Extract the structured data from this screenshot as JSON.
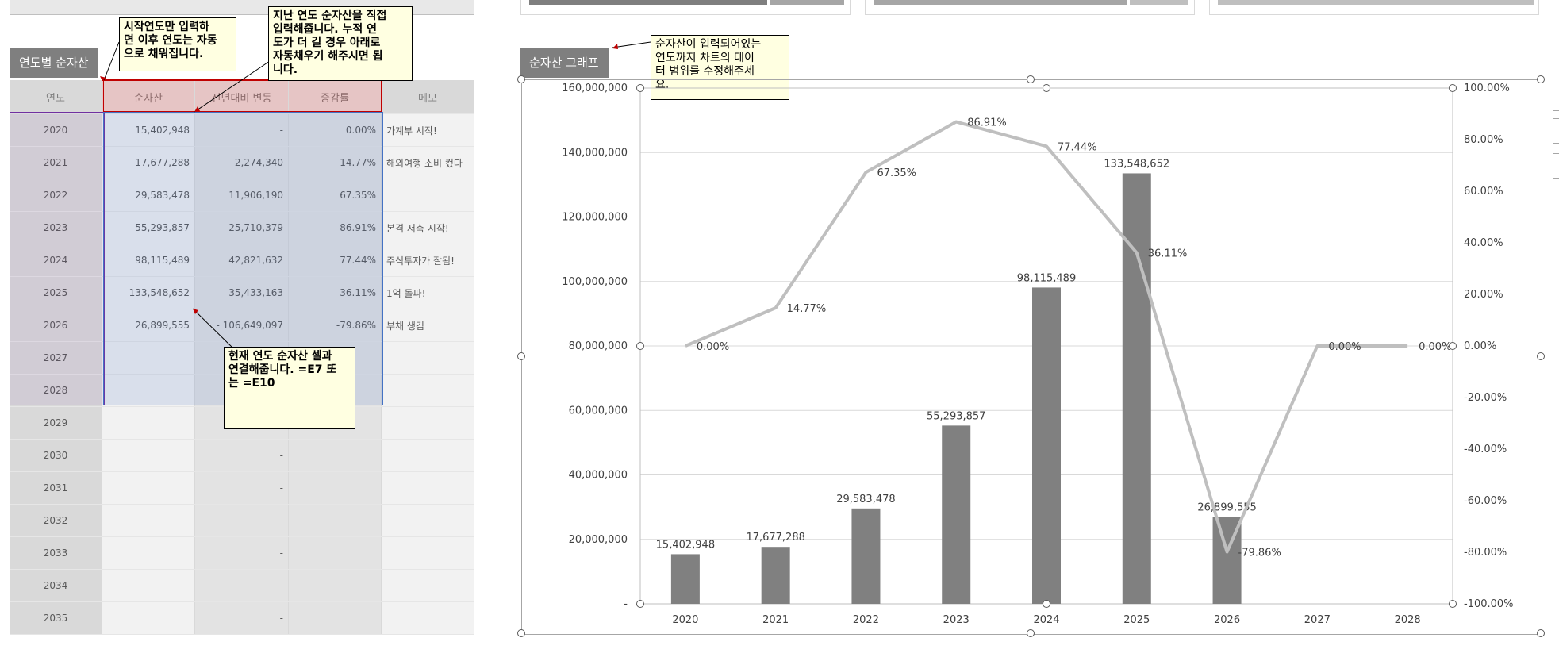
{
  "table": {
    "title": "연도별 순자산",
    "headers": {
      "year": "연도",
      "net_assets": "순자산",
      "change": "전년대비 변동",
      "rate": "증감률",
      "memo": "메모"
    },
    "rows": [
      {
        "year": "2020",
        "net": "15,402,948",
        "change": "-",
        "rate": "0.00%",
        "memo": "가계부 시작!"
      },
      {
        "year": "2021",
        "net": "17,677,288",
        "change": "2,274,340",
        "rate": "14.77%",
        "memo": "해외여행 소비 컸다"
      },
      {
        "year": "2022",
        "net": "29,583,478",
        "change": "11,906,190",
        "rate": "67.35%",
        "memo": ""
      },
      {
        "year": "2023",
        "net": "55,293,857",
        "change": "25,710,379",
        "rate": "86.91%",
        "memo": "본격 저축 시작!"
      },
      {
        "year": "2024",
        "net": "98,115,489",
        "change": "42,821,632",
        "rate": "77.44%",
        "memo": "주식투자가 잘됨!"
      },
      {
        "year": "2025",
        "net": "133,548,652",
        "change": "35,433,163",
        "rate": "36.11%",
        "memo": "1억 돌파!"
      },
      {
        "year": "2026",
        "net": "26,899,555",
        "change": "-  106,649,097",
        "rate": "-79.86%",
        "memo": "부채 생김"
      },
      {
        "year": "2027",
        "net": "",
        "change": "",
        "rate": "",
        "memo": ""
      },
      {
        "year": "2028",
        "net": "",
        "change": "",
        "rate": "",
        "memo": ""
      },
      {
        "year": "2029",
        "net": "",
        "change": "",
        "rate": "",
        "memo": ""
      },
      {
        "year": "2030",
        "net": "",
        "change": "-",
        "rate": "",
        "memo": ""
      },
      {
        "year": "2031",
        "net": "",
        "change": "-",
        "rate": "",
        "memo": ""
      },
      {
        "year": "2032",
        "net": "",
        "change": "-",
        "rate": "",
        "memo": ""
      },
      {
        "year": "2033",
        "net": "",
        "change": "-",
        "rate": "",
        "memo": ""
      },
      {
        "year": "2034",
        "net": "",
        "change": "-",
        "rate": "",
        "memo": ""
      },
      {
        "year": "2035",
        "net": "",
        "change": "-",
        "rate": "",
        "memo": ""
      }
    ]
  },
  "top_remnant": {
    "text": "...,000,000     100%"
  },
  "notes": {
    "start_year": "시작연도만 입력하\n면 이후 연도는 자동\n으로 채워집니다.",
    "past_years": "지난 연도 순자산을 직접\n입력해줍니다. 누적 연\n도가 더 길 경우 아래로\n자동채우기 해주시면 됩\n니다.",
    "current_year": "현재 연도 순자산 셀과\n연결해줍니다. =E7 또\n는 =E10",
    "chart_range": "순자산이 입력되어있는\n연도까지 차트의 데이\n터 범위를 수정해주세\n요."
  },
  "chart_tab": "순자산 그래프",
  "chart_data": {
    "type": "bar+line",
    "categories": [
      "2020",
      "2021",
      "2022",
      "2023",
      "2024",
      "2025",
      "2026",
      "2027",
      "2028"
    ],
    "bar_values": [
      15402948,
      17677288,
      29583478,
      55293857,
      98115489,
      133548652,
      26899555,
      null,
      null
    ],
    "bar_labels": [
      "15,402,948",
      "17,677,288",
      "29,583,478",
      "55,293,857",
      "98,115,489",
      "133,548,652",
      "26,899,555",
      "",
      ""
    ],
    "line_values": [
      0,
      14.77,
      67.35,
      86.91,
      77.44,
      36.11,
      -79.86,
      0,
      0
    ],
    "line_labels": [
      "0.00%",
      "14.77%",
      "67.35%",
      "86.91%",
      "77.44%",
      "36.11%",
      "-79.86%",
      "0.00%",
      "0.00%"
    ],
    "ylim_left": [
      0,
      160000000
    ],
    "ylim_right": [
      -100,
      100
    ],
    "left_ticks": [
      "-",
      "20,000,000",
      "40,000,000",
      "60,000,000",
      "80,000,000",
      "100,000,000",
      "120,000,000",
      "140,000,000",
      "160,000,000"
    ],
    "right_ticks": [
      "-100.00%",
      "-80.00%",
      "-60.00%",
      "-40.00%",
      "-20.00%",
      "0.00%",
      "20.00%",
      "40.00%",
      "60.00%",
      "80.00%",
      "100.00%"
    ],
    "bar_color": "#808080",
    "line_color": "#bfbfbf",
    "grid": true
  },
  "colors": {
    "header_gray": "#7f7f7f",
    "header_red_border": "#c00000",
    "selection_blue": "#4472c4",
    "selection_purple": "#7030a0",
    "note_bg": "#ffffe1"
  }
}
